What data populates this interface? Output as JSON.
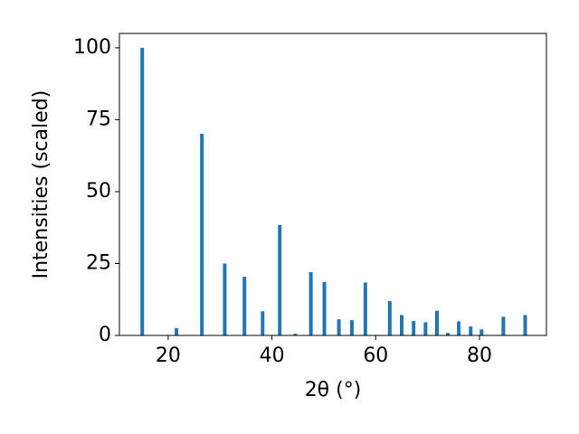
{
  "chart_data": {
    "type": "bar",
    "x_label": "2θ (°)",
    "y_label": "Intensities (scaled)",
    "x": [
      15,
      21.6,
      26.5,
      30.9,
      34.7,
      38.2,
      41.5,
      44.5,
      47.5,
      50.1,
      52.9,
      55.4,
      58.0,
      62.7,
      65.0,
      67.3,
      69.6,
      71.8,
      73.9,
      76.0,
      78.3,
      80.4,
      84.6,
      88.8
    ],
    "values": [
      100,
      2.5,
      70.1,
      25,
      20.4,
      8.4,
      38.4,
      0.6,
      22,
      18.6,
      5.6,
      5.3,
      18.4,
      11.9,
      7.1,
      5.0,
      4.6,
      8.6,
      0.9,
      4.9,
      3.1,
      2.1,
      6.5,
      7.1
    ],
    "color": "#1f77b4",
    "xlim": [
      10.6,
      92.9
    ],
    "xticks": [
      20,
      40,
      60,
      80
    ],
    "ylim": [
      0,
      105
    ],
    "yticks": [
      0,
      25,
      50,
      75,
      100
    ],
    "grid": false
  }
}
